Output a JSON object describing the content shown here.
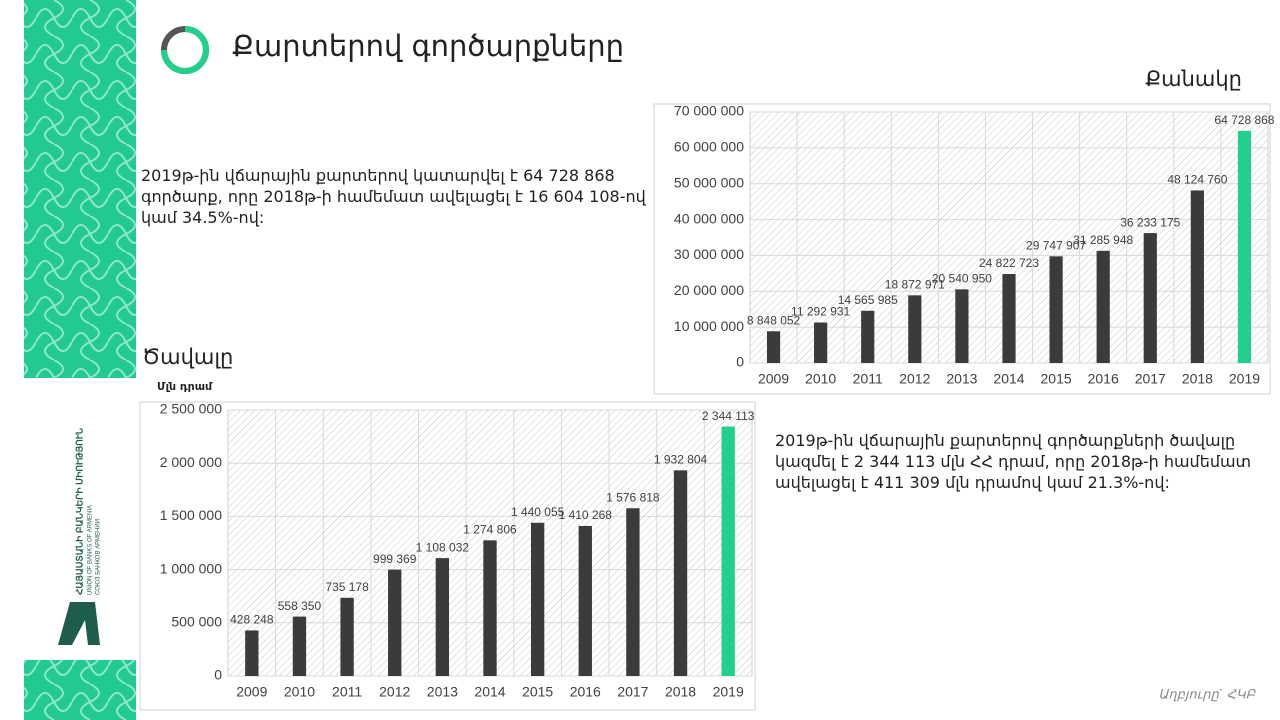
{
  "title": "Քարտերով գործարքները",
  "paragraphs": [
    "2019թ-ին վճարային քարտերով կատարվել է 64 728 868 գործարք, որը 2018թ-ի համեմատ ավելացել է  16 604 108-ով կամ 34.5%-ով:",
    "2019թ-ին վճարային քարտերով գործարքների ծավալը կազմել է 2 344 113 մլն ՀՀ դրամ, որը 2018թ-ի համեմատ ավելացել է 411 309 մլն դրամով կամ 21.3%-ով:"
  ],
  "source": "Աղբյուրը` ՀԿԲ",
  "logo": [
    "ՀԱՅԱՍՏԱՆԻ ԲԱՆԿԵՐԻ ՄԻՈՒԹՅՈՒՆ",
    "UNION OF BANKS OF ARMENIA",
    "СОЮЗ БАНКОВ АРМЕНИИ"
  ],
  "chart_data": [
    {
      "type": "bar",
      "title": "Քանակը",
      "categories": [
        "2009",
        "2010",
        "2011",
        "2012",
        "2013",
        "2014",
        "2015",
        "2016",
        "2017",
        "2018",
        "2019"
      ],
      "values": [
        8848052,
        11292931,
        14565985,
        18872971,
        20540950,
        24822723,
        29747907,
        31285948,
        36233175,
        48124760,
        64728868
      ],
      "value_labels": [
        "8 848 052",
        "11 292 931",
        "14 565 985",
        "18 872 971",
        "20 540 950",
        "24 822 723",
        "29 747 907",
        "31 285 948",
        "36 233 175",
        "48 124 760",
        "64 728 868"
      ],
      "colors": [
        "#3b3b3b",
        "#3b3b3b",
        "#3b3b3b",
        "#3b3b3b",
        "#3b3b3b",
        "#3b3b3b",
        "#3b3b3b",
        "#3b3b3b",
        "#3b3b3b",
        "#3b3b3b",
        "#22d08e"
      ],
      "ylim": [
        0,
        70000000
      ],
      "yticks": [
        0,
        {
          "value": 10000000,
          "label": "10 000 000"
        },
        {
          "value": 20000000,
          "label": "20 000 000"
        },
        {
          "value": 30000000,
          "label": "30 000 000"
        },
        {
          "value": 40000000,
          "label": "40 000 000"
        },
        {
          "value": 50000000,
          "label": "50 000 000"
        },
        {
          "value": 60000000,
          "label": "60 000 000"
        },
        {
          "value": 70000000,
          "label": "70 000 000"
        }
      ],
      "grid": true
    },
    {
      "type": "bar",
      "title": "Ծավալը",
      "y_label": "Մլն դրամ",
      "categories": [
        "2009",
        "2010",
        "2011",
        "2012",
        "2013",
        "2014",
        "2015",
        "2016",
        "2017",
        "2018",
        "2019"
      ],
      "values": [
        428248,
        558350,
        735178,
        999369,
        1108032,
        1274806,
        1440055,
        1410268,
        1576818,
        1932804,
        2344113
      ],
      "value_labels": [
        "428 248",
        "558 350",
        "735 178",
        "999 369",
        "1 108 032",
        "1 274 806",
        "1 440 055",
        "1 410 268",
        "1 576 818",
        "1 932 804",
        "2 344 113"
      ],
      "colors": [
        "#3b3b3b",
        "#3b3b3b",
        "#3b3b3b",
        "#3b3b3b",
        "#3b3b3b",
        "#3b3b3b",
        "#3b3b3b",
        "#3b3b3b",
        "#3b3b3b",
        "#3b3b3b",
        "#22d08e"
      ],
      "ylim": [
        0,
        2500000
      ],
      "yticks": [
        0,
        {
          "value": 500000,
          "label": "500 000"
        },
        {
          "value": 1000000,
          "label": "1 000 000"
        },
        {
          "value": 1500000,
          "label": "1 500 000"
        },
        {
          "value": 2000000,
          "label": "2 000 000"
        },
        {
          "value": 2500000,
          "label": "2 500 000"
        }
      ],
      "grid": true
    }
  ]
}
